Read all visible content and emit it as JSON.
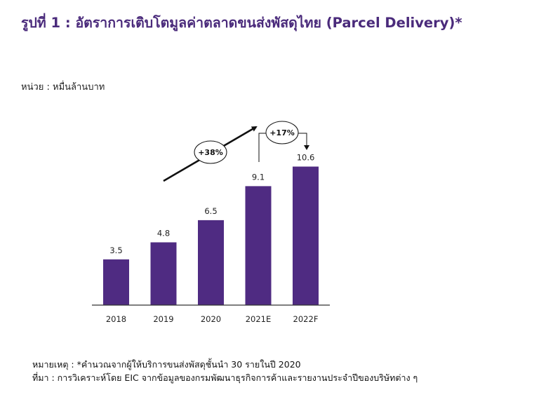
{
  "title": "รูปที่ 1 : อัตราการเติบโตมูลค่าตลาดขนส่งพัสดุไทย (Parcel Delivery)*",
  "unit_label": "หน่วย : หมื่นล้านบาท",
  "chart_data": {
    "type": "bar",
    "categories": [
      "2018",
      "2019",
      "2020",
      "2021E",
      "2022F"
    ],
    "values": [
      3.5,
      4.8,
      6.5,
      9.1,
      10.6
    ],
    "value_labels": [
      "3.5",
      "4.8",
      "6.5",
      "9.1",
      "10.6"
    ],
    "ylim": [
      0,
      11
    ],
    "bar_color": "#4f2b82",
    "annotations": [
      {
        "text": "+38%",
        "span": [
          "2018",
          "2021E"
        ]
      },
      {
        "text": "+17%",
        "span": [
          "2021E",
          "2022F"
        ]
      }
    ]
  },
  "footnote": {
    "note": "หมายเหตุ : *คำนวณจากผู้ให้บริการขนส่งพัสดุชั้นนำ 30 รายในปี 2020",
    "source": "ที่มา : การวิเคราะห์โดย EIC จากข้อมูลของกรมพัฒนาธุรกิจการค้าและรายงานประจำปีของบริษัทต่าง ๆ"
  }
}
